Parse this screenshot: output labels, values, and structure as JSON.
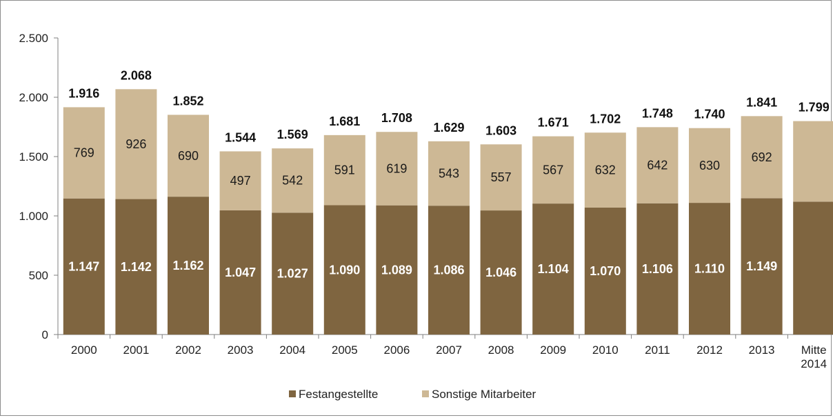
{
  "chart_data": {
    "type": "bar",
    "stacked": true,
    "categories": [
      "2000",
      "2001",
      "2002",
      "2003",
      "2004",
      "2005",
      "2006",
      "2007",
      "2008",
      "2009",
      "2010",
      "2011",
      "2012",
      "2013",
      "Mitte 2014"
    ],
    "series": [
      {
        "name": "Festangestellte",
        "values": [
          1147,
          1142,
          1162,
          1047,
          1027,
          1090,
          1089,
          1086,
          1046,
          1104,
          1070,
          1106,
          1110,
          1149,
          1120
        ],
        "color": "#7f6540"
      },
      {
        "name": "Sonstige Mitarbeiter",
        "values": [
          769,
          926,
          690,
          497,
          542,
          591,
          619,
          543,
          557,
          567,
          632,
          642,
          630,
          692,
          679
        ],
        "color": "#cdb895"
      }
    ],
    "data_labels": {
      "festangestellte": [
        "1.147",
        "1.142",
        "1.162",
        "1.047",
        "1.027",
        "1.090",
        "1.089",
        "1.086",
        "1.046",
        "1.104",
        "1.070",
        "1.106",
        "1.110",
        "1.149",
        ""
      ],
      "sonstige": [
        "769",
        "926",
        "690",
        "497",
        "542",
        "591",
        "619",
        "543",
        "557",
        "567",
        "632",
        "642",
        "630",
        "692",
        ""
      ],
      "totals": [
        "1.916",
        "2.068",
        "1.852",
        "1.544",
        "1.569",
        "1.681",
        "1.708",
        "1.629",
        "1.603",
        "1.671",
        "1.702",
        "1.748",
        "1.740",
        "1.841",
        "1.799"
      ]
    },
    "ylim": [
      0,
      2500
    ],
    "yticks": [
      0,
      500,
      1000,
      1500,
      2000,
      2500
    ],
    "ytick_labels": [
      "0",
      "500",
      "1.000",
      "1.500",
      "2.000",
      "2.500"
    ],
    "title": "",
    "xlabel": "",
    "ylabel": "",
    "grid": false,
    "legend_position": "bottom"
  }
}
